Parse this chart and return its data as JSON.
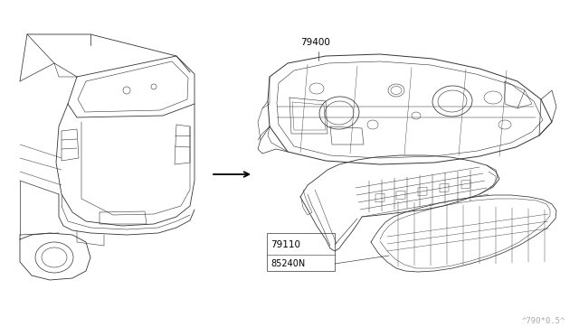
{
  "background_color": "#ffffff",
  "label_79400": "79400",
  "label_79110": "79110",
  "label_85240N": "85240N",
  "label_color": "#000000",
  "line_color": "#333333",
  "arrow_color": "#000000",
  "font_size_labels": 7.5,
  "font_size_watermark": 6.5,
  "watermark": "^790*0.5^",
  "figw": 6.4,
  "figh": 3.72,
  "dpi": 100
}
